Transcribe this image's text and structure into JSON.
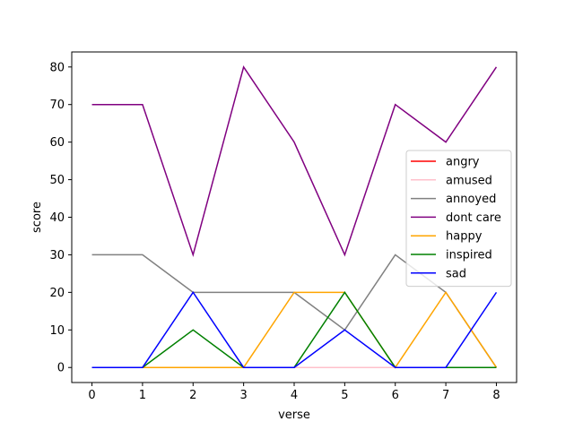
{
  "chart_data": {
    "type": "line",
    "title": "",
    "xlabel": "verse",
    "ylabel": "score",
    "x": [
      0,
      1,
      2,
      3,
      4,
      5,
      6,
      7,
      8
    ],
    "xlim": [
      -0.4,
      8.4
    ],
    "ylim": [
      -4,
      84
    ],
    "xticks": [
      0,
      1,
      2,
      3,
      4,
      5,
      6,
      7,
      8
    ],
    "yticks": [
      0,
      10,
      20,
      30,
      40,
      50,
      60,
      70,
      80
    ],
    "grid": false,
    "legend_position": "center-right",
    "series": [
      {
        "name": "angry",
        "color": "#ff0000",
        "values": [
          0,
          0,
          0,
          0,
          0,
          0,
          0,
          0,
          0
        ]
      },
      {
        "name": "amused",
        "color": "#ffc0cb",
        "values": [
          0,
          0,
          0,
          0,
          0,
          0,
          0,
          0,
          0
        ]
      },
      {
        "name": "annoyed",
        "color": "#808080",
        "values": [
          30,
          30,
          20,
          20,
          20,
          10,
          30,
          20,
          0
        ]
      },
      {
        "name": "dont care",
        "color": "#800080",
        "values": [
          70,
          70,
          30,
          80,
          60,
          30,
          70,
          60,
          80
        ]
      },
      {
        "name": "happy",
        "color": "#ffa500",
        "values": [
          0,
          0,
          0,
          0,
          20,
          20,
          0,
          20,
          0
        ]
      },
      {
        "name": "inspired",
        "color": "#008000",
        "values": [
          0,
          0,
          10,
          0,
          0,
          20,
          0,
          0,
          0
        ]
      },
      {
        "name": "sad",
        "color": "#0000ff",
        "values": [
          0,
          0,
          20,
          0,
          0,
          10,
          0,
          0,
          20
        ]
      }
    ]
  }
}
